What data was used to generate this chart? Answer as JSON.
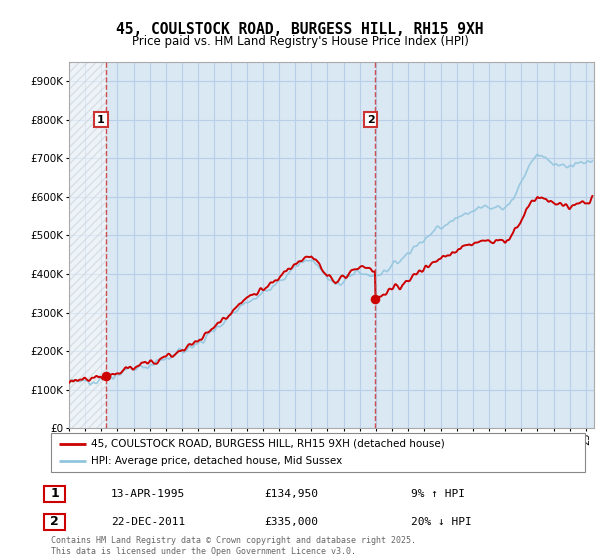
{
  "title": "45, COULSTOCK ROAD, BURGESS HILL, RH15 9XH",
  "subtitle": "Price paid vs. HM Land Registry's House Price Index (HPI)",
  "ylabel_ticks": [
    "£0",
    "£100K",
    "£200K",
    "£300K",
    "£400K",
    "£500K",
    "£600K",
    "£700K",
    "£800K",
    "£900K"
  ],
  "ylim": [
    0,
    950000
  ],
  "xlim_start": 1993.0,
  "xlim_end": 2025.5,
  "sale1": {
    "date": 1995.28,
    "price": 134950,
    "label": "1"
  },
  "sale2": {
    "date": 2011.97,
    "price": 335000,
    "label": "2"
  },
  "hpi_color": "#92c5de",
  "price_color": "#cc0000",
  "vline_color": "#cc3333",
  "grid_color": "#b8cfe8",
  "bg_color": "#dae8f4",
  "legend_label_price": "45, COULSTOCK ROAD, BURGESS HILL, RH15 9XH (detached house)",
  "legend_label_hpi": "HPI: Average price, detached house, Mid Sussex",
  "table_rows": [
    {
      "num": "1",
      "date": "13-APR-1995",
      "price": "£134,950",
      "change": "9% ↑ HPI"
    },
    {
      "num": "2",
      "date": "22-DEC-2011",
      "price": "£335,000",
      "change": "20% ↓ HPI"
    }
  ],
  "footer": "Contains HM Land Registry data © Crown copyright and database right 2025.\nThis data is licensed under the Open Government Licence v3.0."
}
